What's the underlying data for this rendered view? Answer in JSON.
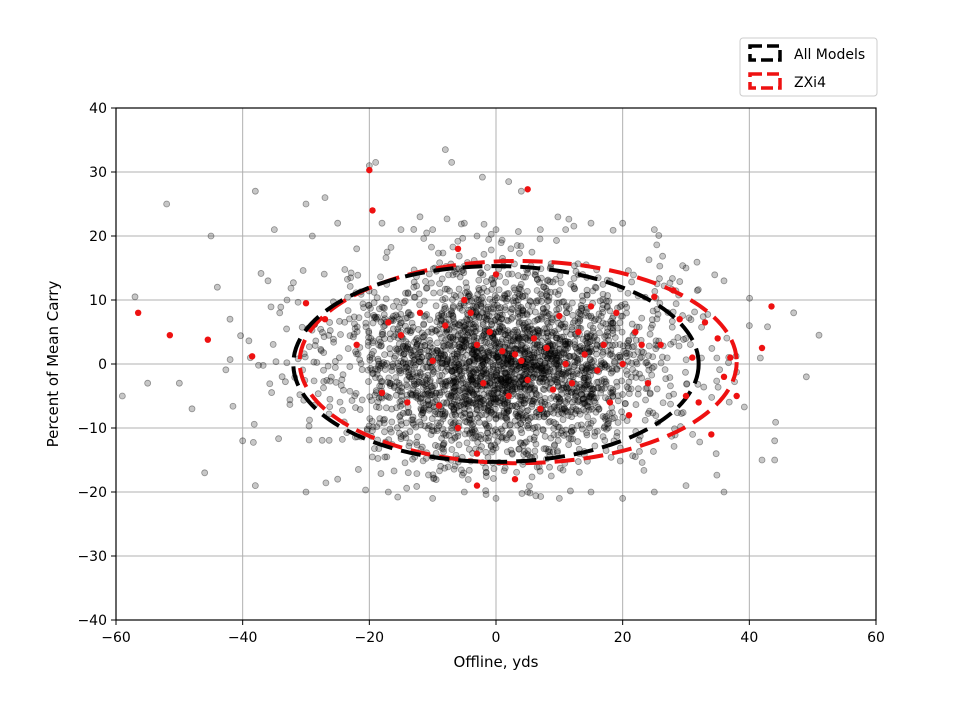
{
  "chart_data": {
    "type": "scatter",
    "title": "",
    "xlabel": "Offline, yds",
    "ylabel": "Percent of Mean Carry",
    "xlim": [
      -60,
      60
    ],
    "ylim": [
      -40,
      40
    ],
    "xticks": [
      -60,
      -40,
      -20,
      0,
      20,
      40,
      60
    ],
    "yticks": [
      -40,
      -30,
      -20,
      -10,
      0,
      10,
      20,
      30,
      40
    ],
    "xtick_labels": [
      "−60",
      "−40",
      "−20",
      "0",
      "20",
      "40",
      "60"
    ],
    "ytick_labels": [
      "−40",
      "−30",
      "−20",
      "−10",
      "0",
      "10",
      "20",
      "30",
      "40"
    ],
    "grid": true,
    "legend_position": "upper-right (outside axes)",
    "series": [
      {
        "name": "All Models",
        "color": "#000000",
        "marker": "circle-translucent",
        "ellipse": {
          "center": [
            0,
            0
          ],
          "x_radius": 32,
          "y_radius": 15.3,
          "style": "dashed"
        },
        "highlight_points": [
          [
            -57,
            10.5
          ],
          [
            -52,
            25
          ],
          [
            -50,
            -3
          ],
          [
            -48,
            -7
          ],
          [
            -45,
            20
          ],
          [
            -44,
            12
          ],
          [
            -42,
            7
          ],
          [
            -40,
            -12
          ],
          [
            -38,
            27
          ],
          [
            -36,
            13
          ],
          [
            -35,
            21
          ],
          [
            -33,
            10
          ],
          [
            -30,
            25
          ],
          [
            -29,
            20
          ],
          [
            -27,
            26
          ],
          [
            -25,
            22
          ],
          [
            -22,
            18
          ],
          [
            -20,
            31
          ],
          [
            -19,
            31.5
          ],
          [
            -18,
            22
          ],
          [
            -15,
            21
          ],
          [
            -12,
            23
          ],
          [
            -10,
            21
          ],
          [
            -8,
            33.5
          ],
          [
            -7,
            31.5
          ],
          [
            -5,
            22
          ],
          [
            -3,
            20
          ],
          [
            0,
            21
          ],
          [
            2,
            28.5
          ],
          [
            4,
            27
          ],
          [
            7,
            21
          ],
          [
            11,
            21
          ],
          [
            15,
            22
          ],
          [
            20,
            22
          ],
          [
            25,
            21
          ],
          [
            30,
            15
          ],
          [
            36,
            13
          ],
          [
            40,
            6
          ],
          [
            44,
            -15
          ],
          [
            47,
            8
          ],
          [
            49,
            -2
          ],
          [
            51,
            4.5
          ],
          [
            -59,
            -5
          ],
          [
            -55,
            -3
          ],
          [
            -46,
            -17
          ],
          [
            -38,
            -19
          ],
          [
            -30,
            -20
          ],
          [
            -25,
            -18
          ],
          [
            -17,
            -20
          ],
          [
            -10,
            -21
          ],
          [
            -5,
            -20
          ],
          [
            0,
            -21
          ],
          [
            5,
            -20
          ],
          [
            10,
            -21
          ],
          [
            15,
            -20
          ],
          [
            20,
            -21
          ],
          [
            25,
            -20
          ],
          [
            30,
            -19
          ],
          [
            36,
            -20
          ],
          [
            42,
            -15
          ],
          [
            44,
            -12
          ]
        ]
      },
      {
        "name": "ZXi4",
        "color": "#ee1111",
        "marker": "circle",
        "ellipse": {
          "center": [
            3.5,
            0.3
          ],
          "x_radius": 34.5,
          "y_radius": 15.8,
          "style": "dashed"
        },
        "points": [
          [
            -56.5,
            8
          ],
          [
            -51.5,
            4.5
          ],
          [
            -45.5,
            3.8
          ],
          [
            -38.5,
            1.2
          ],
          [
            -20,
            30.3
          ],
          [
            -19.5,
            24
          ],
          [
            -30,
            9.5
          ],
          [
            -27,
            7
          ],
          [
            -22,
            3
          ],
          [
            -17,
            6.5
          ],
          [
            -15,
            4.5
          ],
          [
            -12,
            8
          ],
          [
            -10,
            0.5
          ],
          [
            -8,
            6
          ],
          [
            -6,
            18
          ],
          [
            -5,
            10
          ],
          [
            -4,
            8
          ],
          [
            -3,
            3
          ],
          [
            -2,
            -3
          ],
          [
            -1,
            5
          ],
          [
            0,
            14
          ],
          [
            1,
            2
          ],
          [
            2,
            -5
          ],
          [
            3,
            1.5
          ],
          [
            4,
            0.5
          ],
          [
            5,
            27.3
          ],
          [
            5,
            -2.5
          ],
          [
            6,
            4
          ],
          [
            7,
            -7
          ],
          [
            8,
            2.5
          ],
          [
            9,
            -4
          ],
          [
            10,
            7.5
          ],
          [
            11,
            0
          ],
          [
            12,
            -3
          ],
          [
            13,
            5
          ],
          [
            14,
            1.5
          ],
          [
            15,
            9
          ],
          [
            16,
            -1
          ],
          [
            17,
            3
          ],
          [
            18,
            -6
          ],
          [
            19,
            8
          ],
          [
            20,
            0
          ],
          [
            21,
            -8
          ],
          [
            22,
            5
          ],
          [
            23,
            3
          ],
          [
            24,
            -3
          ],
          [
            25,
            10.5
          ],
          [
            26,
            3
          ],
          [
            28,
            11.5
          ],
          [
            29,
            7
          ],
          [
            30,
            -5
          ],
          [
            31,
            1
          ],
          [
            32,
            -6
          ],
          [
            33,
            6.5
          ],
          [
            34,
            -11
          ],
          [
            35,
            4
          ],
          [
            36,
            -2
          ],
          [
            37,
            1
          ],
          [
            38,
            -5
          ],
          [
            42,
            2.5
          ],
          [
            43.5,
            9
          ],
          [
            -18,
            -4.5
          ],
          [
            -14,
            -6
          ],
          [
            -9,
            -6.5
          ],
          [
            -6,
            -10
          ],
          [
            -3,
            -14
          ],
          [
            3,
            -18
          ],
          [
            -3,
            -19
          ]
        ]
      }
    ]
  }
}
